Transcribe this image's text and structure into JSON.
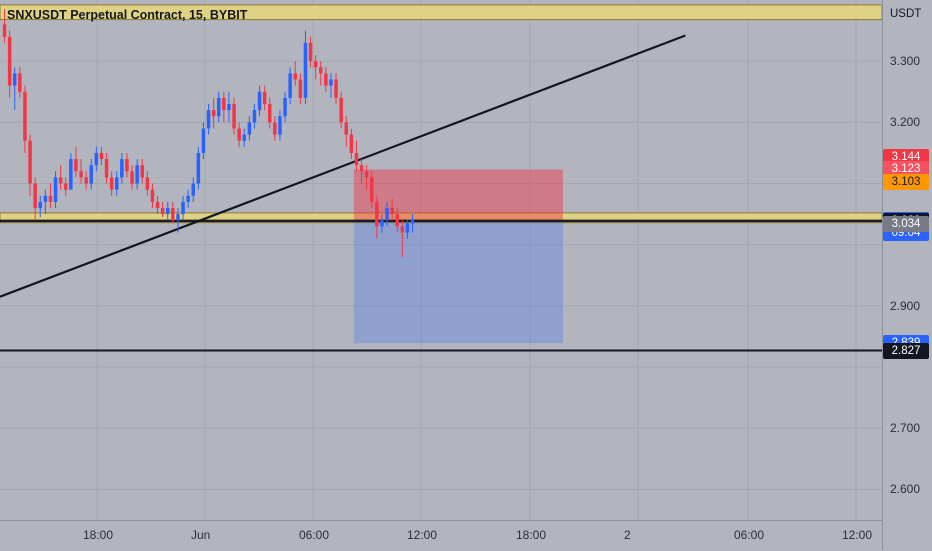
{
  "header": {
    "title": "SNXUSDT Perpetual Contract, 15, BYBIT"
  },
  "price_axis": {
    "unit": "USDT",
    "ticks": [
      "3.300",
      "3.200",
      "2.900",
      "2.700",
      "2.600"
    ],
    "labels": [
      {
        "text": "3.144",
        "bg": "#f23645",
        "fg": "#ffffff",
        "value": 3.144
      },
      {
        "text": "3.123",
        "bg": "#f7525f",
        "fg": "#ffffff",
        "value": 3.123
      },
      {
        "text": "3.103",
        "bg": "#ff9800",
        "fg": "#131722",
        "value": 3.103
      },
      {
        "text": "3.040",
        "bg": "#2962ff",
        "fg": "#ffffff",
        "value": 3.04
      },
      {
        "text": "09:04",
        "bg": "#2962ff",
        "fg": "#ffffff",
        "value": 3.019
      },
      {
        "text": "3.038",
        "bg": "#131722",
        "fg": "#ffffff",
        "value": 3.038
      },
      {
        "text": "3.034",
        "bg": "#787b86",
        "fg": "#ffffff",
        "value": 3.034
      },
      {
        "text": "2.839",
        "bg": "#2962ff",
        "fg": "#ffffff",
        "value": 2.839
      },
      {
        "text": "2.827",
        "bg": "#131722",
        "fg": "#ffffff",
        "value": 2.827
      }
    ]
  },
  "time_axis": {
    "ticks": [
      "18:00",
      "Jun",
      "06:00",
      "12:00",
      "18:00",
      "2",
      "06:00",
      "12:00"
    ]
  },
  "chart_data": {
    "type": "candlestick",
    "symbol": "SNXUSDT Perpetual Contract",
    "interval": "15",
    "exchange": "BYBIT",
    "ylim": [
      2.55,
      3.4
    ],
    "x_ticks": [
      "18:00",
      "Jun",
      "06:00",
      "12:00",
      "18:00",
      "2",
      "06:00",
      "12:00"
    ],
    "y_ticks": [
      3.3,
      3.2,
      2.9,
      2.7,
      2.6
    ],
    "grid": true,
    "colors": {
      "up": "#2962ff",
      "down": "#f23645",
      "zone": "#e8d77a",
      "trendline": "#131722"
    },
    "zones": [
      {
        "name": "resistance",
        "low": 3.368,
        "high": 3.392
      },
      {
        "name": "support",
        "low": 3.036,
        "high": 3.052
      }
    ],
    "horizontal_lines": [
      3.04,
      3.038,
      2.827
    ],
    "trendline": {
      "start": {
        "bar": 0,
        "price": 2.915
      },
      "end": {
        "bar": 134,
        "price": 3.342
      }
    },
    "position": {
      "entry": 3.04,
      "stop": 3.123,
      "target": 2.839,
      "start_bar": 69,
      "end_bar": 110
    },
    "candles": [
      [
        3.36,
        3.385,
        3.33,
        3.34
      ],
      [
        3.34,
        3.35,
        3.24,
        3.26
      ],
      [
        3.26,
        3.29,
        3.22,
        3.28
      ],
      [
        3.28,
        3.29,
        3.24,
        3.25
      ],
      [
        3.25,
        3.26,
        3.15,
        3.17
      ],
      [
        3.17,
        3.18,
        3.08,
        3.1
      ],
      [
        3.1,
        3.11,
        3.04,
        3.06
      ],
      [
        3.06,
        3.08,
        3.045,
        3.07
      ],
      [
        3.07,
        3.09,
        3.05,
        3.08
      ],
      [
        3.08,
        3.1,
        3.06,
        3.07
      ],
      [
        3.07,
        3.12,
        3.06,
        3.11
      ],
      [
        3.11,
        3.13,
        3.09,
        3.1
      ],
      [
        3.1,
        3.11,
        3.08,
        3.09
      ],
      [
        3.09,
        3.15,
        3.09,
        3.14
      ],
      [
        3.14,
        3.16,
        3.11,
        3.12
      ],
      [
        3.12,
        3.14,
        3.1,
        3.11
      ],
      [
        3.11,
        3.12,
        3.09,
        3.1
      ],
      [
        3.1,
        3.14,
        3.09,
        3.13
      ],
      [
        3.13,
        3.16,
        3.12,
        3.15
      ],
      [
        3.15,
        3.16,
        3.13,
        3.14
      ],
      [
        3.14,
        3.15,
        3.1,
        3.11
      ],
      [
        3.11,
        3.12,
        3.08,
        3.09
      ],
      [
        3.09,
        3.12,
        3.08,
        3.11
      ],
      [
        3.11,
        3.15,
        3.1,
        3.14
      ],
      [
        3.14,
        3.15,
        3.11,
        3.12
      ],
      [
        3.12,
        3.13,
        3.09,
        3.1
      ],
      [
        3.1,
        3.14,
        3.09,
        3.13
      ],
      [
        3.13,
        3.14,
        3.1,
        3.11
      ],
      [
        3.11,
        3.12,
        3.08,
        3.09
      ],
      [
        3.09,
        3.1,
        3.06,
        3.07
      ],
      [
        3.07,
        3.08,
        3.05,
        3.06
      ],
      [
        3.06,
        3.07,
        3.045,
        3.05
      ],
      [
        3.05,
        3.07,
        3.04,
        3.06
      ],
      [
        3.06,
        3.07,
        3.035,
        3.04
      ],
      [
        3.04,
        3.06,
        3.02,
        3.05
      ],
      [
        3.05,
        3.08,
        3.04,
        3.07
      ],
      [
        3.07,
        3.09,
        3.06,
        3.08
      ],
      [
        3.08,
        3.11,
        3.07,
        3.1
      ],
      [
        3.1,
        3.16,
        3.09,
        3.15
      ],
      [
        3.15,
        3.2,
        3.14,
        3.19
      ],
      [
        3.19,
        3.23,
        3.18,
        3.22
      ],
      [
        3.22,
        3.24,
        3.19,
        3.21
      ],
      [
        3.21,
        3.25,
        3.2,
        3.24
      ],
      [
        3.24,
        3.25,
        3.2,
        3.22
      ],
      [
        3.22,
        3.25,
        3.2,
        3.23
      ],
      [
        3.23,
        3.24,
        3.18,
        3.19
      ],
      [
        3.19,
        3.2,
        3.16,
        3.17
      ],
      [
        3.17,
        3.19,
        3.16,
        3.18
      ],
      [
        3.18,
        3.21,
        3.17,
        3.2
      ],
      [
        3.2,
        3.23,
        3.19,
        3.22
      ],
      [
        3.22,
        3.26,
        3.21,
        3.25
      ],
      [
        3.25,
        3.26,
        3.22,
        3.23
      ],
      [
        3.23,
        3.24,
        3.19,
        3.2
      ],
      [
        3.2,
        3.21,
        3.17,
        3.18
      ],
      [
        3.18,
        3.22,
        3.17,
        3.21
      ],
      [
        3.21,
        3.25,
        3.2,
        3.24
      ],
      [
        3.24,
        3.29,
        3.23,
        3.28
      ],
      [
        3.28,
        3.3,
        3.26,
        3.27
      ],
      [
        3.27,
        3.28,
        3.23,
        3.24
      ],
      [
        3.24,
        3.35,
        3.23,
        3.33
      ],
      [
        3.33,
        3.34,
        3.29,
        3.3
      ],
      [
        3.3,
        3.31,
        3.27,
        3.29
      ],
      [
        3.29,
        3.3,
        3.26,
        3.28
      ],
      [
        3.28,
        3.29,
        3.25,
        3.26
      ],
      [
        3.26,
        3.28,
        3.24,
        3.27
      ],
      [
        3.27,
        3.28,
        3.23,
        3.24
      ],
      [
        3.24,
        3.25,
        3.19,
        3.2
      ],
      [
        3.2,
        3.21,
        3.16,
        3.18
      ],
      [
        3.18,
        3.19,
        3.14,
        3.15
      ],
      [
        3.15,
        3.17,
        3.12,
        3.13
      ],
      [
        3.13,
        3.14,
        3.1,
        3.12
      ],
      [
        3.12,
        3.13,
        3.09,
        3.11
      ],
      [
        3.11,
        3.12,
        3.06,
        3.07
      ],
      [
        3.07,
        3.08,
        3.01,
        3.03
      ],
      [
        3.03,
        3.05,
        3.02,
        3.04
      ],
      [
        3.04,
        3.07,
        3.03,
        3.06
      ],
      [
        3.06,
        3.075,
        3.04,
        3.05
      ],
      [
        3.05,
        3.06,
        3.02,
        3.03
      ],
      [
        3.03,
        3.04,
        2.98,
        3.02
      ],
      [
        3.02,
        3.04,
        3.01,
        3.035
      ],
      [
        3.035,
        3.05,
        3.02,
        3.04
      ]
    ]
  }
}
